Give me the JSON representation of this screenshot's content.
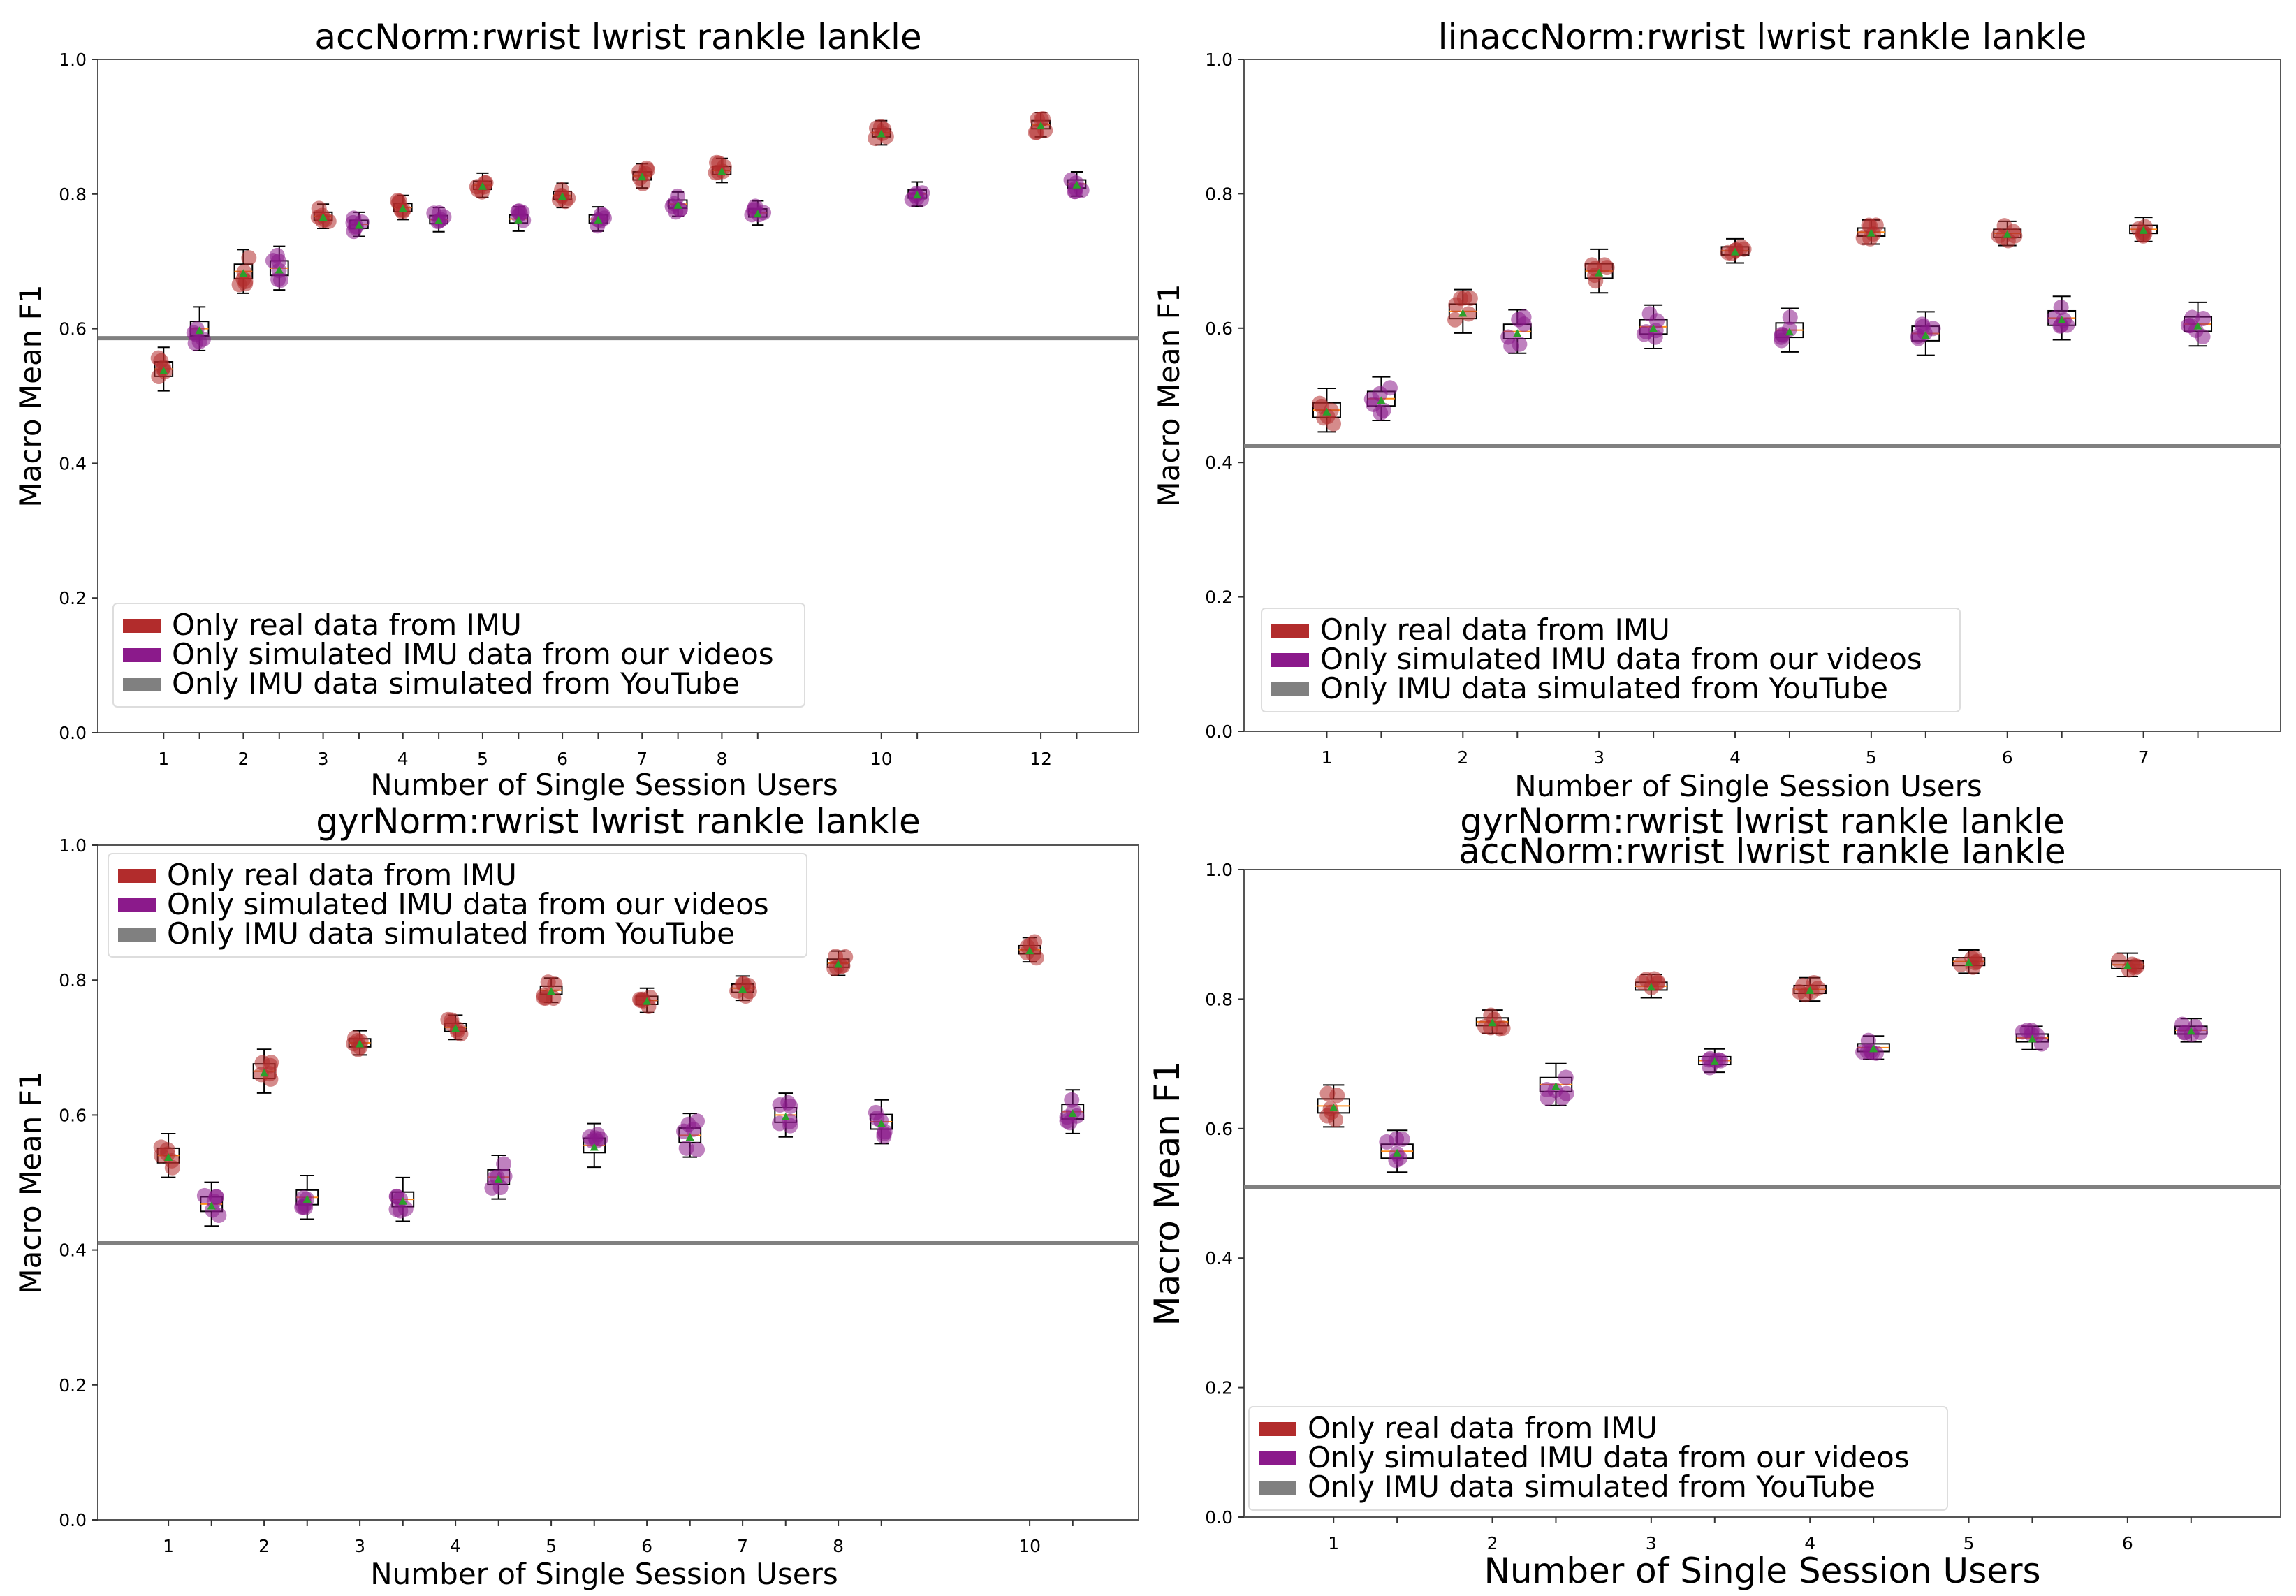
{
  "figure": {
    "ylabel": "Macro Mean F1",
    "xlabel": "Number of Single Session Users"
  },
  "legend": {
    "real": "Only real data from IMU",
    "sim": "Only simulated IMU data from our videos",
    "youtube": "Only IMU data simulated from YouTube"
  },
  "colors": {
    "real": "#b22c2c",
    "sim": "#8b1a8b",
    "youtube": "#808080",
    "median": "#ff8c1a",
    "mean": "#2ca02c"
  },
  "chart_data": [
    {
      "type": "box",
      "title": "accNorm:rwrist lwrist rankle lankle",
      "title2": "",
      "xlabel": "Number of Single Session Users",
      "ylabel": "Macro Mean F1",
      "ylim": [
        0.0,
        1.0
      ],
      "yticks": [
        "0.0",
        "0.2",
        "0.4",
        "0.6",
        "0.8",
        "1.0"
      ],
      "categories": [
        "1",
        "2",
        "3",
        "4",
        "5",
        "6",
        "7",
        "8",
        "10",
        "12"
      ],
      "youtube_baseline": 0.586,
      "legend_location": "lower-left",
      "series": [
        {
          "name": "real",
          "values": [
            0.54,
            0.685,
            0.767,
            0.78,
            0.813,
            0.798,
            0.827,
            0.835,
            0.891,
            0.903
          ]
        },
        {
          "name": "sim",
          "values": [
            0.6,
            0.69,
            0.755,
            0.762,
            0.763,
            0.763,
            0.785,
            0.772,
            0.8,
            0.815
          ]
        }
      ]
    },
    {
      "type": "box",
      "title": "linaccNorm:rwrist lwrist rankle lankle",
      "title2": "",
      "xlabel": "Number of Single Session Users",
      "ylabel": "Macro Mean F1",
      "ylim": [
        0.0,
        1.0
      ],
      "yticks": [
        "0.0",
        "0.2",
        "0.4",
        "0.6",
        "0.8",
        "1.0"
      ],
      "categories": [
        "1",
        "2",
        "3",
        "4",
        "5",
        "6",
        "7"
      ],
      "youtube_baseline": 0.425,
      "legend_location": "lower-left",
      "series": [
        {
          "name": "real",
          "values": [
            0.478,
            0.625,
            0.685,
            0.715,
            0.743,
            0.741,
            0.747
          ]
        },
        {
          "name": "sim",
          "values": [
            0.495,
            0.595,
            0.602,
            0.597,
            0.592,
            0.615,
            0.606
          ]
        }
      ]
    },
    {
      "type": "box",
      "title": "gyrNorm:rwrist lwrist rankle lankle",
      "title2": "",
      "xlabel": "Number of Single Session Users",
      "ylabel": "Macro Mean F1",
      "ylim": [
        0.0,
        1.0
      ],
      "yticks": [
        "0.0",
        "0.2",
        "0.4",
        "0.6",
        "0.8",
        "1.0"
      ],
      "categories": [
        "1",
        "2",
        "3",
        "4",
        "5",
        "6",
        "7",
        "8",
        "10"
      ],
      "youtube_baseline": 0.41,
      "legend_location": "upper-left",
      "series": [
        {
          "name": "real",
          "values": [
            0.54,
            0.665,
            0.707,
            0.73,
            0.785,
            0.77,
            0.788,
            0.825,
            0.845
          ]
        },
        {
          "name": "sim",
          "values": [
            0.468,
            0.478,
            0.475,
            0.508,
            0.555,
            0.57,
            0.6,
            0.59,
            0.605
          ]
        }
      ]
    },
    {
      "type": "box",
      "title": "gyrNorm:rwrist lwrist rankle lankle",
      "title2": "accNorm:rwrist lwrist rankle lankle",
      "xlabel": "Number of Single Session Users",
      "ylabel": "Macro Mean F1",
      "ylim": [
        0.0,
        1.0
      ],
      "yticks": [
        "0.0",
        "0.2",
        "0.4",
        "0.6",
        "0.8",
        "1.0"
      ],
      "categories": [
        "1",
        "2",
        "3",
        "4",
        "5",
        "6"
      ],
      "youtube_baseline": 0.51,
      "legend_location": "lower-left",
      "series": [
        {
          "name": "real",
          "values": [
            0.635,
            0.765,
            0.82,
            0.815,
            0.858,
            0.853
          ]
        },
        {
          "name": "sim",
          "values": [
            0.565,
            0.668,
            0.705,
            0.725,
            0.74,
            0.752
          ]
        }
      ]
    }
  ]
}
